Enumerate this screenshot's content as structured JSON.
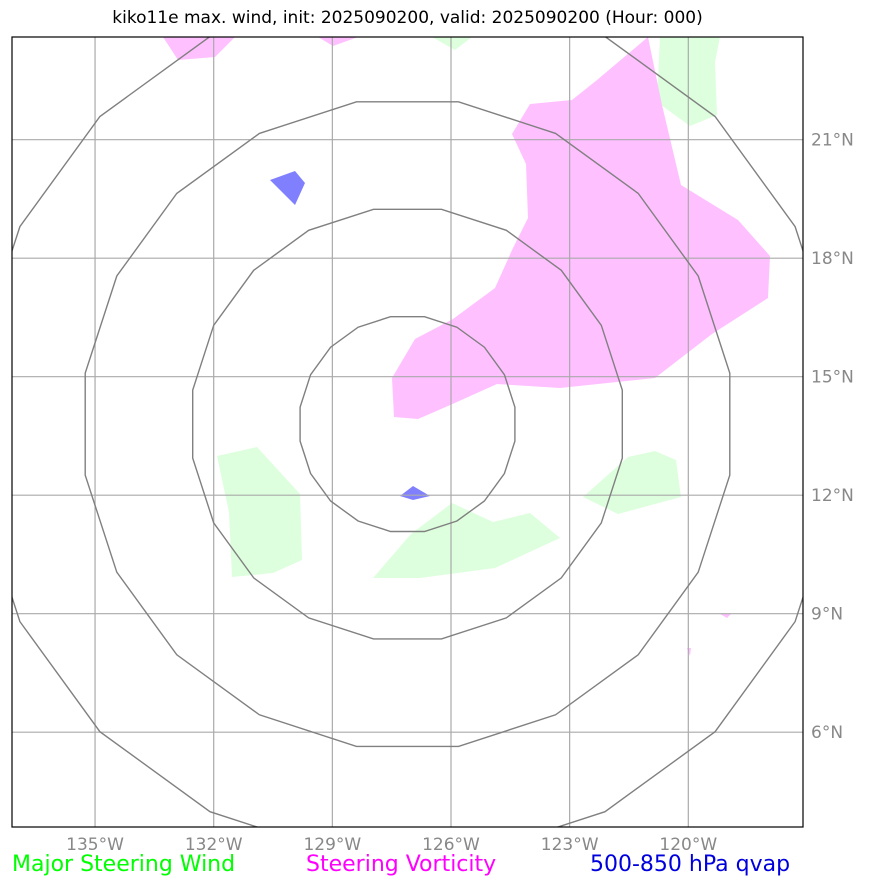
{
  "title": "kiko11e max. wind, init: 2025090200, valid: 2025090200 (Hour: 000)",
  "lat_ticks": [
    {
      "lat": 21,
      "label": "21°N"
    },
    {
      "lat": 18,
      "label": "18°N"
    },
    {
      "lat": 15,
      "label": "15°N"
    },
    {
      "lat": 12,
      "label": "12°N"
    },
    {
      "lat": 9,
      "label": "9°N"
    },
    {
      "lat": 6,
      "label": "6°N"
    }
  ],
  "lon_ticks": [
    {
      "lon": -135,
      "label": "135°W"
    },
    {
      "lon": -132,
      "label": "132°W"
    },
    {
      "lon": -129,
      "label": "129°W"
    },
    {
      "lon": -126,
      "label": "126°W"
    },
    {
      "lon": -123,
      "label": "123°W"
    },
    {
      "lon": -120,
      "label": "120°W"
    }
  ],
  "extent": {
    "lon_min": -137.1,
    "lon_max": -117.1,
    "lat_min": 3.6,
    "lat_max": 23.6
  },
  "center": {
    "lon": -127.1,
    "lat": 13.8
  },
  "range_rings": [
    2.75,
    5.5,
    8.25,
    11.0
  ],
  "colors": {
    "steering_wind": "#00ff00",
    "steering_vorticity": "#ff00ff",
    "qvap": "#0000dd",
    "wind_fill": "#ddffdd",
    "vorticity_fill": "#ffc0ff",
    "qvap_fill": "#8080ff",
    "ring": "#808080",
    "grid": "#aaaaaa"
  },
  "legend": {
    "wind": "Major Steering Wind",
    "vorticity": "Steering Vorticity",
    "qvap": "500-850 hPa qvap"
  }
}
